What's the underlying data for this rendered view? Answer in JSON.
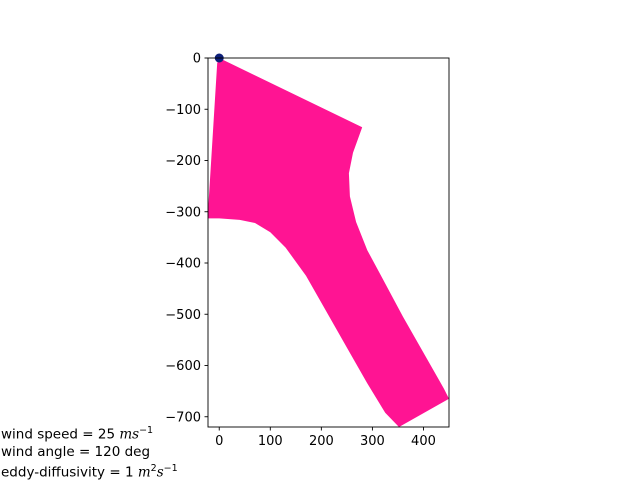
{
  "chart_data": {
    "type": "area",
    "title": "",
    "xlabel": "",
    "ylabel": "",
    "xlim": [
      -22,
      450
    ],
    "ylim": [
      -720,
      0
    ],
    "xticks": [
      0,
      100,
      200,
      300,
      400
    ],
    "yticks": [
      0,
      -100,
      -200,
      -300,
      -400,
      -500,
      -600,
      -700
    ],
    "grid": false,
    "source_marker": {
      "x": 0,
      "y": 0,
      "color": "#0d1f7a"
    },
    "plume": {
      "color": "#ff1493",
      "outline": [
        [
          0,
          0
        ],
        [
          280,
          -135
        ],
        [
          262,
          -185
        ],
        [
          254,
          -225
        ],
        [
          256,
          -270
        ],
        [
          268,
          -320
        ],
        [
          290,
          -375
        ],
        [
          325,
          -440
        ],
        [
          360,
          -505
        ],
        [
          400,
          -575
        ],
        [
          440,
          -645
        ],
        [
          450,
          -665
        ],
        [
          352,
          -720
        ],
        [
          325,
          -692
        ],
        [
          290,
          -635
        ],
        [
          250,
          -565
        ],
        [
          210,
          -495
        ],
        [
          170,
          -425
        ],
        [
          130,
          -370
        ],
        [
          100,
          -340
        ],
        [
          70,
          -322
        ],
        [
          40,
          -316
        ],
        [
          0,
          -313
        ],
        [
          -22,
          -313
        ],
        [
          -22,
          -300
        ],
        [
          -4,
          -10
        ]
      ]
    },
    "annotations": {
      "wind_speed": {
        "label": "wind speed = 25 ",
        "unit": "ms",
        "exp": "−1"
      },
      "wind_angle": {
        "label": "wind angle = 120 deg"
      },
      "eddy": {
        "label": "eddy-diffusivity = 1 ",
        "unit1": "m",
        "exp1": "2",
        "unit2": "s",
        "exp2": "−1"
      }
    }
  }
}
